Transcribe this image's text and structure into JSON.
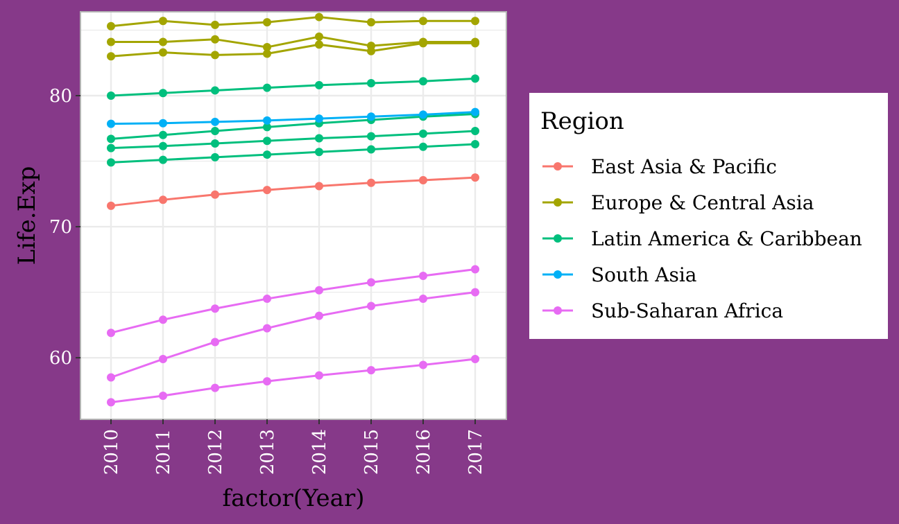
{
  "colors": {
    "background": "#863989",
    "panel": "#ffffff",
    "panel_border": "#b3b3b3",
    "grid": "#ebebeb",
    "tick_text": "#ffffff",
    "title_text": "#000000"
  },
  "chart_data": {
    "type": "line",
    "xlabel": "factor(Year)",
    "ylabel": "Life.Exp",
    "categories": [
      "2010",
      "2011",
      "2012",
      "2013",
      "2014",
      "2015",
      "2016",
      "2017"
    ],
    "y_ticks": [
      60,
      70,
      80
    ],
    "ylim": [
      55.3,
      86.4
    ],
    "grid": true,
    "legend": {
      "title": "Region",
      "position": "right",
      "entries": [
        {
          "label": "East Asia & Pacific",
          "color": "#F8766D"
        },
        {
          "label": "Europe & Central Asia",
          "color": "#A3A500"
        },
        {
          "label": "Latin America & Caribbean",
          "color": "#00BF7D"
        },
        {
          "label": "South Asia",
          "color": "#00B0F6"
        },
        {
          "label": "Sub-Saharan Africa",
          "color": "#E76BF3"
        }
      ]
    },
    "series": [
      {
        "region": "East Asia & Pacific",
        "color": "#F8766D",
        "values": [
          71.6,
          72.05,
          72.45,
          72.8,
          73.1,
          73.35,
          73.55,
          73.75
        ]
      },
      {
        "region": "Europe & Central Asia",
        "color": "#A3A500",
        "values": [
          85.3,
          85.7,
          85.4,
          85.6,
          86.0,
          85.6,
          85.7,
          85.7
        ]
      },
      {
        "region": "Europe & Central Asia",
        "color": "#A3A500",
        "values": [
          84.1,
          84.1,
          84.3,
          83.7,
          84.5,
          83.8,
          84.1,
          84.1
        ]
      },
      {
        "region": "Europe & Central Asia",
        "color": "#A3A500",
        "values": [
          83.0,
          83.3,
          83.1,
          83.2,
          83.9,
          83.4,
          84.0,
          84.0
        ]
      },
      {
        "region": "Latin America & Caribbean",
        "color": "#00BF7D",
        "values": [
          80.0,
          80.2,
          80.4,
          80.6,
          80.8,
          80.95,
          81.1,
          81.3
        ]
      },
      {
        "region": "Latin America & Caribbean",
        "color": "#00BF7D",
        "values": [
          76.7,
          77.0,
          77.3,
          77.6,
          77.9,
          78.15,
          78.4,
          78.6
        ]
      },
      {
        "region": "Latin America & Caribbean",
        "color": "#00BF7D",
        "values": [
          76.0,
          76.15,
          76.35,
          76.55,
          76.75,
          76.9,
          77.1,
          77.3
        ]
      },
      {
        "region": "Latin America & Caribbean",
        "color": "#00BF7D",
        "values": [
          74.9,
          75.1,
          75.3,
          75.5,
          75.7,
          75.9,
          76.1,
          76.3
        ]
      },
      {
        "region": "South Asia",
        "color": "#00B0F6",
        "values": [
          77.85,
          77.9,
          78.0,
          78.1,
          78.25,
          78.4,
          78.55,
          78.75
        ]
      },
      {
        "region": "Sub-Saharan Africa",
        "color": "#E76BF3",
        "values": [
          61.9,
          62.9,
          63.75,
          64.5,
          65.15,
          65.75,
          66.25,
          66.75
        ]
      },
      {
        "region": "Sub-Saharan Africa",
        "color": "#E76BF3",
        "values": [
          58.5,
          59.9,
          61.2,
          62.25,
          63.2,
          63.95,
          64.5,
          65.0
        ]
      },
      {
        "region": "Sub-Saharan Africa",
        "color": "#E76BF3",
        "values": [
          56.6,
          57.1,
          57.7,
          58.2,
          58.65,
          59.05,
          59.45,
          59.9
        ]
      }
    ]
  }
}
